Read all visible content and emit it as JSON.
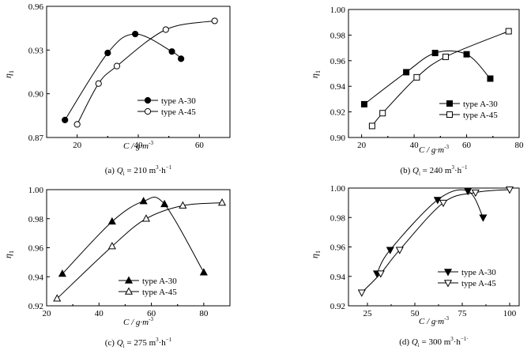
{
  "chart_data": [
    {
      "id": "a",
      "type": "line",
      "ylabel_main": "η",
      "ylabel_sub": "1",
      "xlabel": "C / g·m",
      "xlabel_sup": "-3",
      "caption": {
        "prefix": "(a) ",
        "q": "Q",
        "q_sub": "i",
        "value": " = 210 m",
        "sup1": "3",
        "mid": "·h",
        "sup2": "−1"
      },
      "xlim": [
        10,
        70
      ],
      "ylim": [
        0.87,
        0.96
      ],
      "xticks": [
        20,
        40,
        60
      ],
      "yticks": [
        0.87,
        0.9,
        0.93,
        0.96
      ],
      "ytick_labels": [
        "0.87",
        "0.90",
        "0.93",
        "0.96"
      ],
      "legend": {
        "placement": "lower-right"
      },
      "series": [
        {
          "name": "type  A-30",
          "marker": "circle-filled",
          "x": [
            16,
            30,
            39,
            51,
            54
          ],
          "y": [
            0.882,
            0.928,
            0.941,
            0.929,
            0.924
          ]
        },
        {
          "name": "type  A-45",
          "marker": "circle-open",
          "x": [
            20,
            27,
            33,
            49,
            65
          ],
          "y": [
            0.879,
            0.907,
            0.919,
            0.944,
            0.95
          ]
        }
      ]
    },
    {
      "id": "b",
      "type": "line",
      "ylabel_main": "η",
      "ylabel_sub": "1",
      "xlabel": "C / g·m",
      "xlabel_sup": "-3",
      "caption": {
        "prefix": "(b) ",
        "q": "Q",
        "q_sub": "i",
        "value": " = 240 m",
        "sup1": "3",
        "mid": "·h",
        "sup2": "−1"
      },
      "xlim": [
        15,
        80
      ],
      "ylim": [
        0.9,
        1.0
      ],
      "xticks": [
        20,
        40,
        60,
        80
      ],
      "yticks": [
        0.9,
        0.92,
        0.94,
        0.96,
        0.98,
        1.0
      ],
      "ytick_labels": [
        "0.90",
        "0.92",
        "0.94",
        "0.96",
        "0.98",
        "1.00"
      ],
      "legend": {
        "placement": "lower-right"
      },
      "series": [
        {
          "name": "type  A-30",
          "marker": "square-filled",
          "x": [
            21,
            37,
            48,
            60,
            69
          ],
          "y": [
            0.926,
            0.951,
            0.966,
            0.965,
            0.946
          ]
        },
        {
          "name": "type  A-45",
          "marker": "square-open",
          "x": [
            24,
            28,
            41,
            52,
            76
          ],
          "y": [
            0.909,
            0.919,
            0.947,
            0.963,
            0.983
          ]
        }
      ]
    },
    {
      "id": "c",
      "type": "line",
      "ylabel_main": "η",
      "ylabel_sub": "1",
      "xlabel": "C / g·m",
      "xlabel_sup": "-3",
      "caption": {
        "prefix": "(c) ",
        "q": "Q",
        "q_sub": "i",
        "value": " = 275 m",
        "sup1": "3",
        "mid": "·h",
        "sup2": "−1"
      },
      "xlim": [
        20,
        90
      ],
      "ylim": [
        0.92,
        1.0
      ],
      "xticks": [
        20,
        40,
        60,
        80
      ],
      "yticks": [
        0.92,
        0.94,
        0.96,
        0.98,
        1.0
      ],
      "ytick_labels": [
        "0.92",
        "0.94",
        "0.96",
        "0.98",
        "1.00"
      ],
      "legend": {
        "placement": "lower-right"
      },
      "series": [
        {
          "name": "type  A-30",
          "marker": "triangle-up-filled",
          "x": [
            26,
            45,
            57,
            65,
            80
          ],
          "y": [
            0.942,
            0.978,
            0.992,
            0.99,
            0.943
          ]
        },
        {
          "name": "type  A-45",
          "marker": "triangle-up-open",
          "x": [
            24,
            45,
            58,
            72,
            87
          ],
          "y": [
            0.925,
            0.961,
            0.98,
            0.989,
            0.991
          ]
        }
      ]
    },
    {
      "id": "d",
      "type": "line",
      "ylabel_main": "η",
      "ylabel_sub": "1",
      "xlabel": "C / g·m",
      "xlabel_sup": "-3",
      "caption": {
        "prefix": "(d) ",
        "q": "Q",
        "q_sub": "i",
        "value": " = 300 m",
        "sup1": "3",
        "mid": "·h",
        "sup2": "−1·"
      },
      "xlim": [
        15,
        105
      ],
      "ylim": [
        0.92,
        1.0
      ],
      "xticks": [
        25,
        50,
        75,
        100
      ],
      "yticks": [
        0.92,
        0.94,
        0.96,
        0.98,
        1.0
      ],
      "ytick_labels": [
        "0.92",
        "0.94",
        "0.96",
        "0.98",
        "1.00"
      ],
      "legend": {
        "placement": "lower-right"
      },
      "series": [
        {
          "name": "type  A-30",
          "marker": "triangle-down-filled",
          "x": [
            30,
            37,
            62,
            78,
            86
          ],
          "y": [
            0.942,
            0.958,
            0.992,
            0.998,
            0.98
          ]
        },
        {
          "name": "type  A-45",
          "marker": "triangle-down-open",
          "x": [
            22,
            32,
            42,
            65,
            82,
            100
          ],
          "y": [
            0.929,
            0.942,
            0.958,
            0.99,
            0.997,
            0.999
          ]
        }
      ]
    }
  ]
}
